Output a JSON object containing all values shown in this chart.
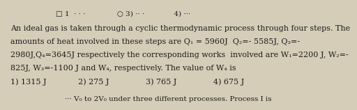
{
  "top_partial": "                    □ 1  · · ·              ○ 3) ·· ·             4) ···",
  "lines": [
    "An ideal gas is taken through a cyclic thermodynamic process through four steps. The",
    "amounts of heat involved in these steps are Q₁ = 5960J  Q₂=- 5585J, Q₃=-",
    "2980J,Q₄=3645J respectively the corresponding works  involved are W₁=2200 J, W₂=-",
    "825J, W₃=-1100 J and W₄, respectively. The value of W₄ is"
  ],
  "options": "1) 1315 J             2) 275 J               3) 765 J               4) 675 J",
  "bottom_partial": "                        ··· V₀ to 2V₀ under three different processes. Process I is",
  "font_size": 8.0,
  "text_color": "#1c1c1c",
  "background_color": "#d6cdb8"
}
